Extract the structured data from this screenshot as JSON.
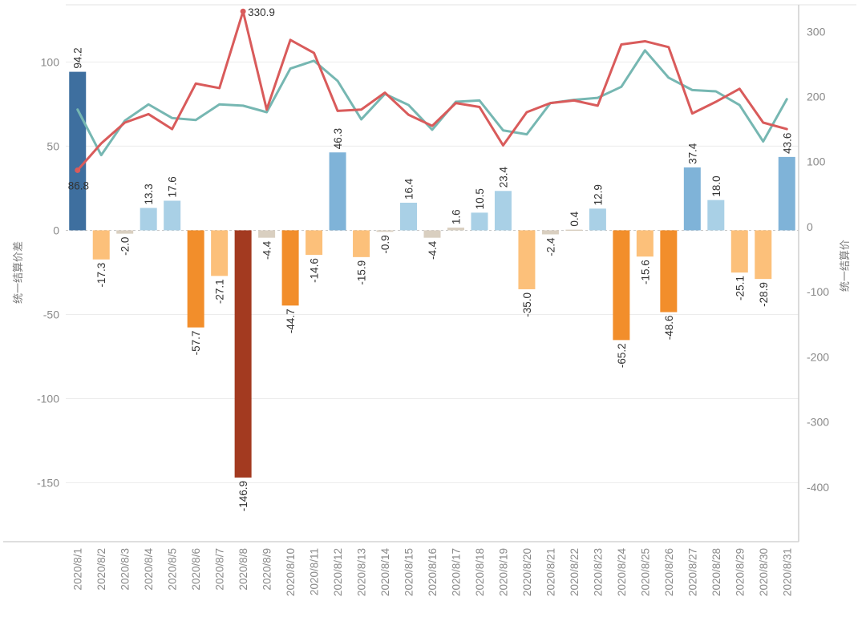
{
  "chart_data": {
    "type": "bar",
    "title": "",
    "categories": [
      "2020/8/1",
      "2020/8/2",
      "2020/8/3",
      "2020/8/4",
      "2020/8/5",
      "2020/8/6",
      "2020/8/7",
      "2020/8/8",
      "2020/8/9",
      "2020/8/10",
      "2020/8/11",
      "2020/8/12",
      "2020/8/13",
      "2020/8/14",
      "2020/8/15",
      "2020/8/16",
      "2020/8/17",
      "2020/8/18",
      "2020/8/19",
      "2020/8/20",
      "2020/8/21",
      "2020/8/22",
      "2020/8/23",
      "2020/8/24",
      "2020/8/25",
      "2020/8/26",
      "2020/8/27",
      "2020/8/28",
      "2020/8/29",
      "2020/8/30",
      "2020/8/31"
    ],
    "bar_series": {
      "name": "统一结算价差",
      "axis": "left",
      "values": [
        94.2,
        -17.3,
        -2.0,
        13.3,
        17.6,
        -57.7,
        -27.1,
        -146.9,
        -4.4,
        -44.7,
        -14.6,
        46.3,
        -15.9,
        -0.9,
        16.4,
        -4.4,
        1.6,
        10.5,
        23.4,
        -35.0,
        -2.4,
        0.4,
        12.9,
        -65.2,
        -15.6,
        -48.6,
        37.4,
        18.0,
        -25.1,
        -28.9,
        43.6
      ],
      "labels": [
        "94.2",
        "-17.3",
        "-2.0",
        "13.3",
        "17.6",
        "-57.7",
        "-27.1",
        "-146.9",
        "-4.4",
        "-44.7",
        "-14.6",
        "46.3",
        "-15.9",
        "-0.9",
        "16.4",
        "-4.4",
        "1.6",
        "10.5",
        "23.4",
        "-35.0",
        "-2.4",
        "0.4",
        "12.9",
        "-65.2",
        "-15.6",
        "-48.6",
        "37.4",
        "18.0",
        "-25.1",
        "-28.9",
        "43.6"
      ],
      "color_scale": [
        "#3e6f9f",
        "#7fb3d8",
        "#a9d0e6",
        "#d9cfc0",
        "#fcc07a",
        "#f28e2b",
        "#a33a20"
      ]
    },
    "line_series": [
      {
        "name": "统一结算价 (series A)",
        "axis": "right",
        "color": "#d95b5b",
        "values": [
          86.8,
          128,
          160,
          173,
          150,
          220,
          213,
          330.9,
          180,
          287,
          267,
          178,
          180,
          206,
          172,
          155,
          190,
          184,
          125,
          176,
          190,
          194,
          186,
          280,
          285,
          276,
          174,
          192,
          212,
          160,
          150
        ],
        "labelled": [
          {
            "index": 0,
            "text": "86.8"
          },
          {
            "index": 7,
            "text": "330.9"
          }
        ]
      },
      {
        "name": "统一结算价 (series B)",
        "axis": "right",
        "color": "#76b7b2",
        "values": [
          180,
          110,
          163,
          188,
          167,
          164,
          188,
          186,
          176,
          243,
          255,
          224,
          165,
          204,
          187,
          149,
          192,
          194,
          148,
          142,
          190,
          195,
          198,
          215,
          271,
          229,
          210,
          208,
          187,
          131,
          196
        ]
      }
    ],
    "y_left": {
      "label": "统一结算价差",
      "ylim": [
        -185,
        134
      ],
      "ticks": [
        100,
        50,
        0,
        -50,
        -100,
        -150
      ],
      "tick_labels": [
        "100",
        "50",
        "0",
        "-50",
        "-100",
        "-150"
      ]
    },
    "y_right": {
      "label": "统一结算价",
      "ylim": [
        -484,
        341
      ],
      "ticks": [
        300,
        200,
        100,
        0,
        -100,
        -200,
        -300,
        -400
      ],
      "tick_labels": [
        "300",
        "200",
        "100",
        "0",
        "-100",
        "-200",
        "-300",
        "-400"
      ]
    },
    "xlabel": "",
    "grid": "horizontal"
  }
}
